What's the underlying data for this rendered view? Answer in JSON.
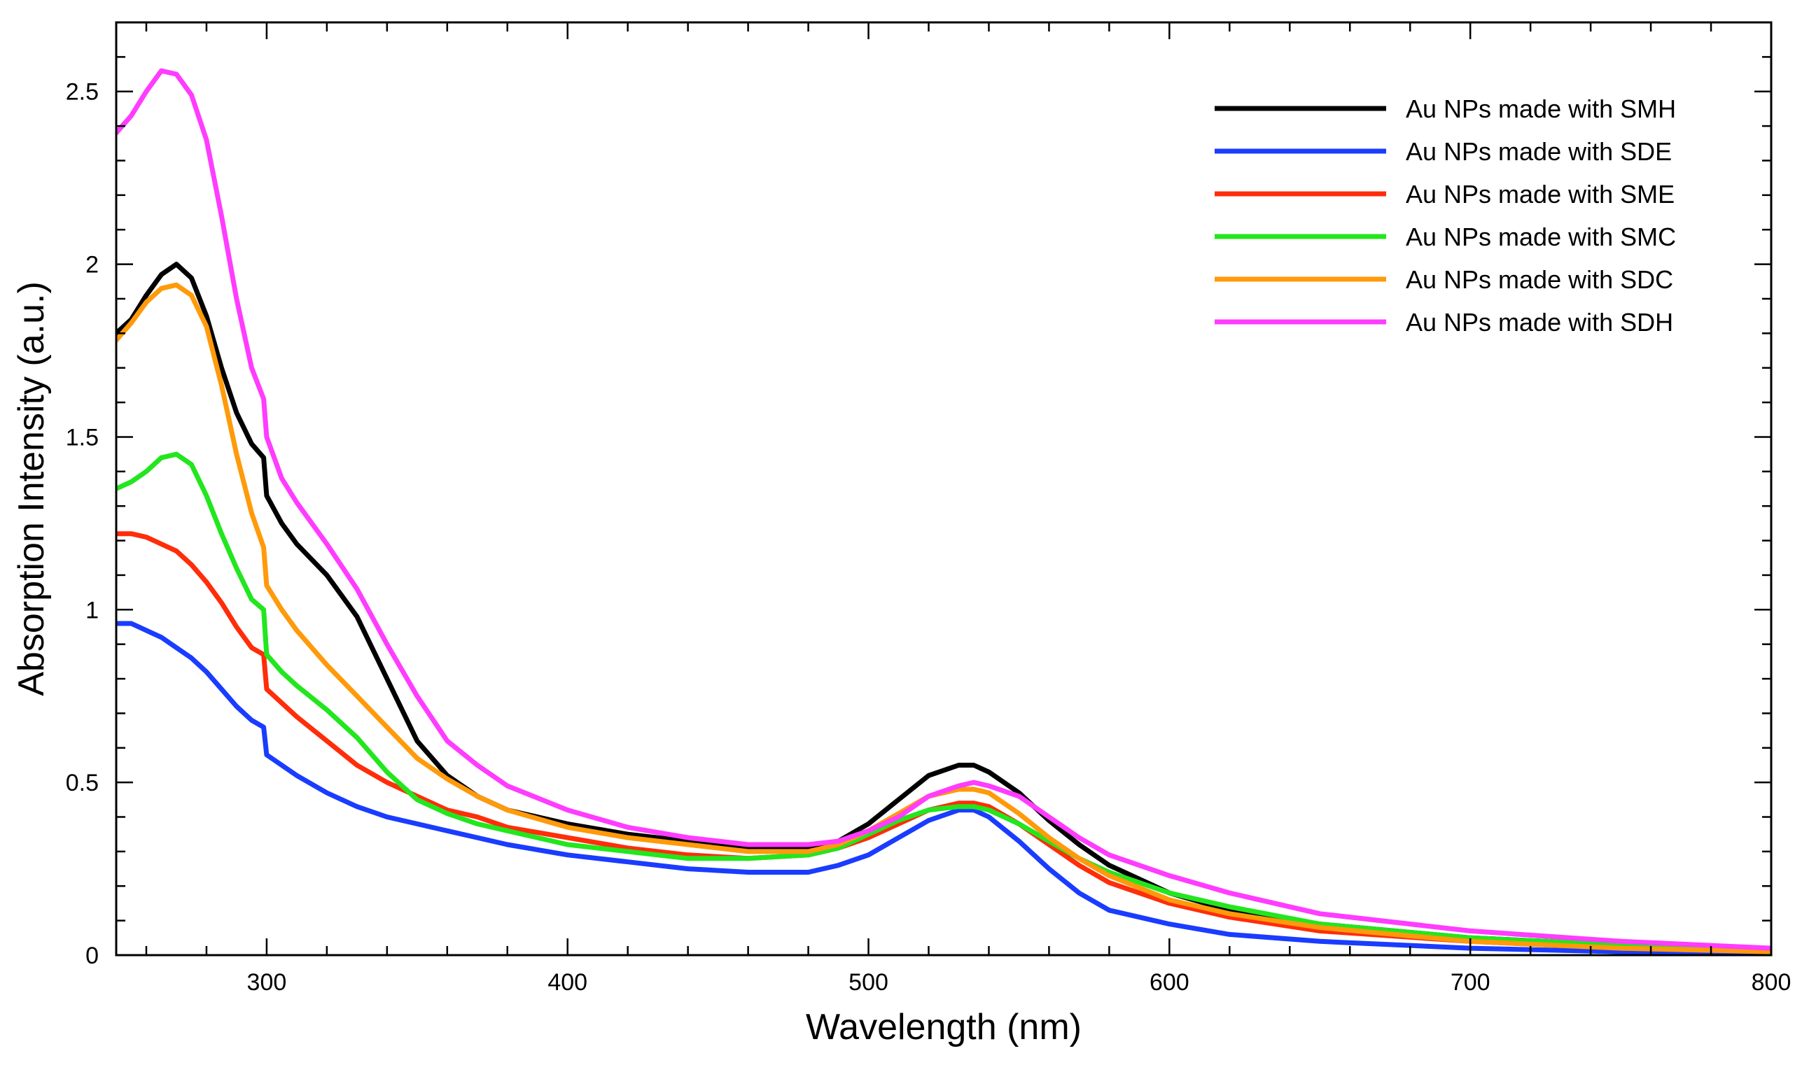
{
  "chart_data": {
    "type": "line",
    "title": "",
    "xlabel": "Wavelength (nm)",
    "ylabel": "Absorption Intensity (a.u.)",
    "xlim": [
      250,
      800
    ],
    "ylim": [
      0,
      2.7
    ],
    "xticks": [
      300,
      400,
      500,
      600,
      700,
      800
    ],
    "xtick_labels": [
      "300",
      "400",
      "500",
      "600",
      "700",
      "800"
    ],
    "yticks": [
      0,
      0.5,
      1,
      1.5,
      2,
      2.5
    ],
    "ytick_labels": [
      "0",
      "0.5",
      "1",
      "1.5",
      "2",
      "2.5"
    ],
    "grid": false,
    "legend_position": "top-right",
    "x": [
      250,
      255,
      260,
      265,
      270,
      275,
      280,
      285,
      290,
      295,
      299,
      300,
      305,
      310,
      320,
      330,
      340,
      350,
      360,
      370,
      380,
      400,
      420,
      440,
      460,
      480,
      490,
      500,
      510,
      520,
      530,
      535,
      540,
      550,
      560,
      570,
      580,
      600,
      620,
      650,
      700,
      750,
      800
    ],
    "series": [
      {
        "name": "Au NPs made with SMH",
        "color": "#000000",
        "values": [
          1.8,
          1.84,
          1.91,
          1.97,
          2.0,
          1.96,
          1.85,
          1.7,
          1.57,
          1.48,
          1.44,
          1.33,
          1.25,
          1.19,
          1.1,
          0.98,
          0.8,
          0.62,
          0.52,
          0.46,
          0.42,
          0.38,
          0.35,
          0.33,
          0.31,
          0.31,
          0.33,
          0.38,
          0.45,
          0.52,
          0.55,
          0.55,
          0.53,
          0.47,
          0.39,
          0.32,
          0.26,
          0.18,
          0.13,
          0.09,
          0.05,
          0.03,
          0.02
        ]
      },
      {
        "name": "Au NPs made with SDE",
        "color": "#1a3cff",
        "values": [
          0.96,
          0.96,
          0.94,
          0.92,
          0.89,
          0.86,
          0.82,
          0.77,
          0.72,
          0.68,
          0.66,
          0.58,
          0.55,
          0.52,
          0.47,
          0.43,
          0.4,
          0.38,
          0.36,
          0.34,
          0.32,
          0.29,
          0.27,
          0.25,
          0.24,
          0.24,
          0.26,
          0.29,
          0.34,
          0.39,
          0.42,
          0.42,
          0.4,
          0.33,
          0.25,
          0.18,
          0.13,
          0.09,
          0.06,
          0.04,
          0.02,
          0.01,
          0.01
        ]
      },
      {
        "name": "Au NPs made with SME",
        "color": "#ff2d0a",
        "values": [
          1.22,
          1.22,
          1.21,
          1.19,
          1.17,
          1.13,
          1.08,
          1.02,
          0.95,
          0.89,
          0.87,
          0.77,
          0.73,
          0.69,
          0.62,
          0.55,
          0.5,
          0.46,
          0.42,
          0.4,
          0.37,
          0.34,
          0.31,
          0.29,
          0.28,
          0.29,
          0.31,
          0.34,
          0.38,
          0.42,
          0.44,
          0.44,
          0.43,
          0.38,
          0.32,
          0.26,
          0.21,
          0.15,
          0.11,
          0.07,
          0.04,
          0.02,
          0.01
        ]
      },
      {
        "name": "Au NPs made with SMC",
        "color": "#22e61e",
        "values": [
          1.35,
          1.37,
          1.4,
          1.44,
          1.45,
          1.42,
          1.33,
          1.22,
          1.12,
          1.03,
          1.0,
          0.87,
          0.82,
          0.78,
          0.71,
          0.63,
          0.53,
          0.45,
          0.41,
          0.38,
          0.36,
          0.32,
          0.3,
          0.28,
          0.28,
          0.29,
          0.31,
          0.35,
          0.39,
          0.42,
          0.43,
          0.43,
          0.42,
          0.38,
          0.33,
          0.28,
          0.24,
          0.18,
          0.14,
          0.09,
          0.05,
          0.03,
          0.02
        ]
      },
      {
        "name": "Au NPs made with SDC",
        "color": "#ff9a0a",
        "values": [
          1.78,
          1.83,
          1.89,
          1.93,
          1.94,
          1.91,
          1.82,
          1.65,
          1.45,
          1.28,
          1.18,
          1.07,
          1.0,
          0.94,
          0.84,
          0.75,
          0.66,
          0.57,
          0.51,
          0.46,
          0.42,
          0.37,
          0.34,
          0.32,
          0.3,
          0.3,
          0.32,
          0.36,
          0.41,
          0.46,
          0.48,
          0.48,
          0.47,
          0.41,
          0.34,
          0.28,
          0.23,
          0.16,
          0.12,
          0.08,
          0.04,
          0.02,
          0.01
        ]
      },
      {
        "name": "Au NPs made with SDH",
        "color": "#ff3cff",
        "values": [
          2.38,
          2.43,
          2.5,
          2.56,
          2.55,
          2.49,
          2.36,
          2.14,
          1.9,
          1.7,
          1.61,
          1.5,
          1.38,
          1.31,
          1.19,
          1.06,
          0.9,
          0.75,
          0.62,
          0.55,
          0.49,
          0.42,
          0.37,
          0.34,
          0.32,
          0.32,
          0.33,
          0.36,
          0.4,
          0.46,
          0.49,
          0.5,
          0.49,
          0.46,
          0.4,
          0.34,
          0.29,
          0.23,
          0.18,
          0.12,
          0.07,
          0.04,
          0.02
        ]
      }
    ]
  }
}
